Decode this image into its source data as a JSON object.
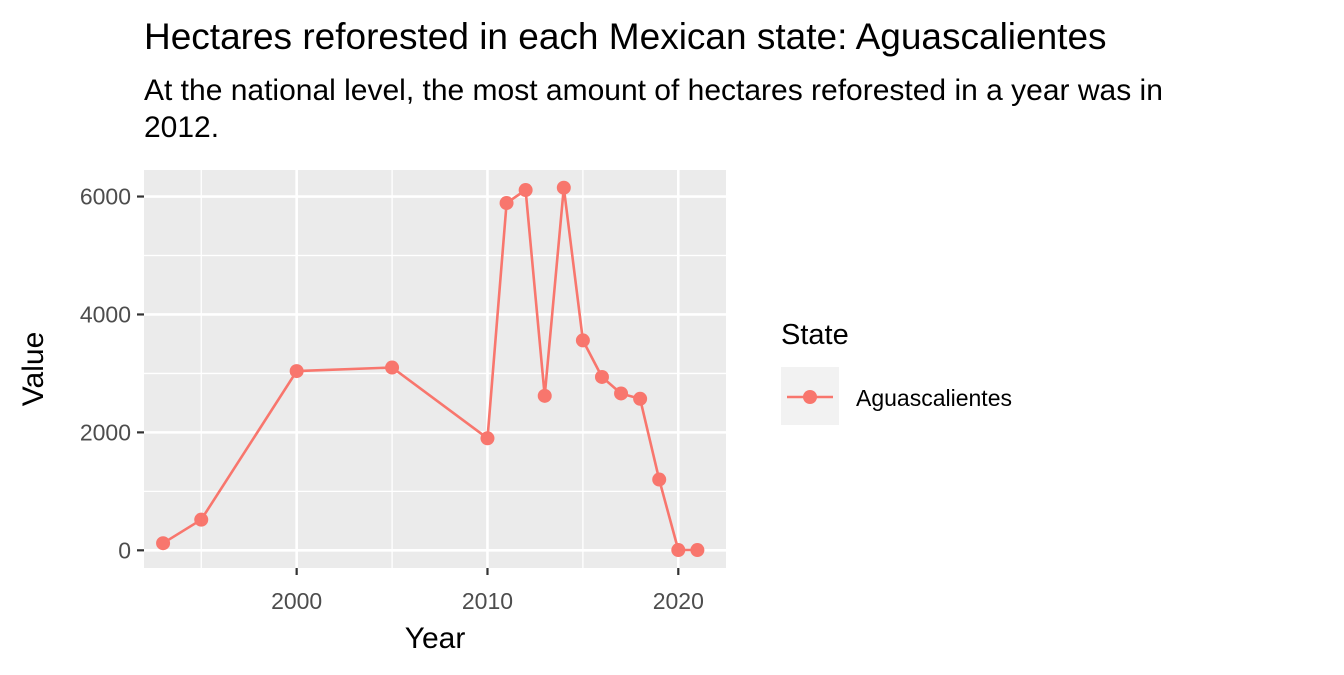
{
  "header": {
    "title": "Hectares reforested in each Mexican state: Aguascalientes",
    "subtitle": "At the national level, the most amount of hectares reforested in a year was in\n2012."
  },
  "chart_data": {
    "type": "line",
    "title": "Hectares reforested in each Mexican state: Aguascalientes",
    "xlabel": "Year",
    "ylabel": "Value",
    "xlim": [
      1992,
      2022.5
    ],
    "ylim": [
      -300,
      6450
    ],
    "x_ticks": [
      2000,
      2010,
      2020
    ],
    "x_minor_ticks": [
      1995,
      2005,
      2015
    ],
    "y_ticks": [
      0,
      2000,
      4000,
      6000
    ],
    "y_minor_ticks": [
      1000,
      3000,
      5000
    ],
    "grid": true,
    "legend_title": "State",
    "legend_position": "right",
    "series": [
      {
        "name": "Aguascalientes",
        "color": "#F8766D",
        "x": [
          1993,
          1995,
          2000,
          2005,
          2010,
          2011,
          2012,
          2013,
          2014,
          2015,
          2016,
          2017,
          2018,
          2019,
          2020,
          2021
        ],
        "values": [
          120,
          520,
          3040,
          3100,
          1900,
          5890,
          6110,
          2620,
          6150,
          3560,
          2940,
          2660,
          2570,
          1200,
          5,
          5
        ]
      }
    ]
  }
}
